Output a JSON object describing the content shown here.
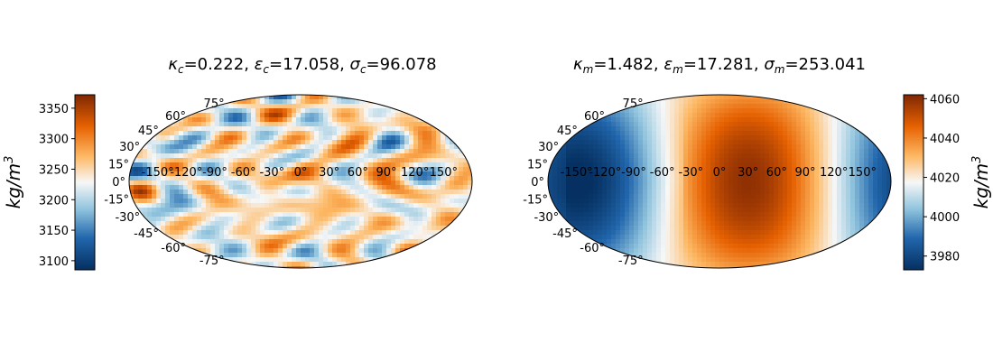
{
  "chart_data": [
    {
      "type": "heatmap",
      "projection": "mollweide",
      "title_parts": {
        "k": "κ",
        "k_sub": "c",
        "k_val": "=0.222, ",
        "e": "ε",
        "e_sub": "c",
        "e_val": "=17.058, ",
        "s": "σ",
        "s_sub": "c",
        "s_val": "=96.078"
      },
      "longitude_ticks": [
        "-150°",
        "-120°",
        "-90°",
        "-60°",
        "-30°",
        "0°",
        "30°",
        "60°",
        "90°",
        "120°",
        "150°"
      ],
      "longitude_values": [
        -150,
        -120,
        -90,
        -60,
        -30,
        0,
        30,
        60,
        90,
        120,
        150
      ],
      "latitude_ticks": [
        "75°",
        "60°",
        "45°",
        "30°",
        "15°",
        "0°",
        "-15°",
        "-30°",
        "-45°",
        "-60°",
        "-75°"
      ],
      "latitude_values": [
        75,
        60,
        45,
        30,
        15,
        0,
        -15,
        -30,
        -45,
        -60,
        -75
      ],
      "colorbar": {
        "side": "left",
        "range": [
          3085,
          3372
        ],
        "ticks": [
          3100,
          3150,
          3200,
          3250,
          3300,
          3350
        ],
        "tick_labels": [
          "3100",
          "3150",
          "3200",
          "3250",
          "3300",
          "3350"
        ],
        "label_base": "kg/m",
        "label_exp": "3",
        "colormap": "blue-white-orange"
      },
      "pattern": "small-scale random field, mean ~3228"
    },
    {
      "type": "heatmap",
      "projection": "mollweide",
      "title_parts": {
        "k": "κ",
        "k_sub": "m",
        "k_val": "=1.482, ",
        "e": "ε",
        "e_sub": "m",
        "e_val": "=17.281, ",
        "s": "σ",
        "s_sub": "m",
        "s_val": "=253.041"
      },
      "longitude_ticks": [
        "-150°",
        "-120°",
        "-90°",
        "-60°",
        "-30°",
        "0°",
        "30°",
        "60°",
        "90°",
        "120°",
        "150°"
      ],
      "longitude_values": [
        -150,
        -120,
        -90,
        -60,
        -30,
        0,
        30,
        60,
        90,
        120,
        150
      ],
      "latitude_ticks": [
        "75°",
        "60°",
        "45°",
        "30°",
        "15°",
        "0°",
        "-15°",
        "-30°",
        "-45°",
        "-60°",
        "-75°"
      ],
      "latitude_values": [
        75,
        60,
        45,
        30,
        15,
        0,
        -15,
        -30,
        -45,
        -60,
        -75
      ],
      "colorbar": {
        "side": "right",
        "range": [
          3973,
          4062
        ],
        "ticks": [
          3980,
          4000,
          4020,
          4040,
          4060
        ],
        "tick_labels": [
          "3980",
          "4000",
          "4020",
          "4040",
          "4060"
        ],
        "label_base": "kg/m",
        "label_exp": "3",
        "colormap": "blue-white-orange"
      },
      "pattern": "large-scale dipole: low near lon -100°, high near lon 30°"
    }
  ],
  "colors": {
    "low": "#053061",
    "mid_low": "#4393c3",
    "mid": "#f7f7f7",
    "mid_high": "#f4a261",
    "high": "#7f2704"
  }
}
